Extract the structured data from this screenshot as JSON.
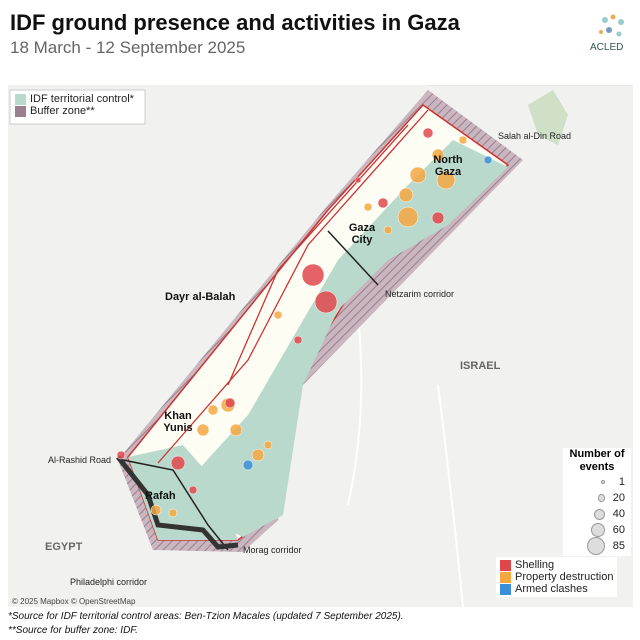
{
  "header": {
    "title": "IDF ground presence and activities in Gaza",
    "subtitle": "18 March - 12 September 2025",
    "logo": "ACLED"
  },
  "area_legend": {
    "items": [
      "IDF territorial control*",
      "Buffer zone**"
    ]
  },
  "places": {
    "north_gaza": "North Gaza",
    "gaza_city": "Gaza City",
    "dayr_al_balah": "Dayr al-Balah",
    "khan_yunis": "Khan Yunis",
    "rafah": "Rafah",
    "israel": "ISRAEL",
    "egypt": "EGYPT"
  },
  "roads": {
    "salah_al_din": "Salah al-Din Road",
    "netzarim": "Netzarim corridor",
    "al_rashid": "Al-Rashid Road",
    "morag": "Morag corridor",
    "philadelphi": "Philadelphi corridor"
  },
  "size_legend": {
    "title": "Number of events",
    "sizes": [
      1,
      20,
      40,
      60,
      85
    ]
  },
  "event_legend": {
    "items": [
      "Shelling",
      "Property destruction",
      "Armed clashes"
    ]
  },
  "credit": "© 2025 Mapbox © OpenStreetMap",
  "footnotes": [
    "*Source for IDF territorial control areas: Ben-Tzion Macales (updated 7 September 2025).",
    "**Source for buffer zone: IDF."
  ]
}
